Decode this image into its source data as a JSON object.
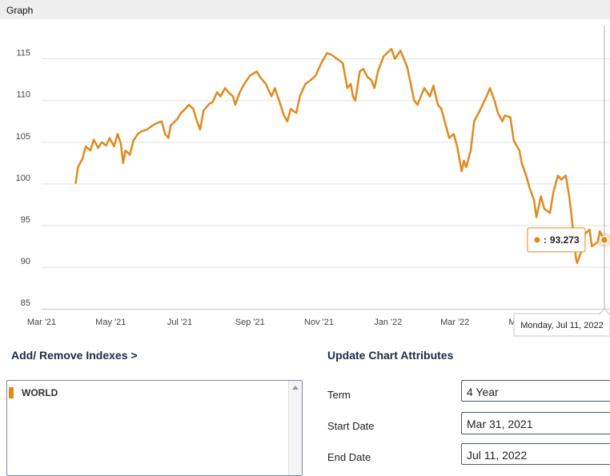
{
  "header": {
    "title": "Graph"
  },
  "chart_data": {
    "type": "line",
    "title": "",
    "xlabel": "",
    "ylabel": "",
    "ylim": [
      85,
      119
    ],
    "xlim": [
      "2021-03-01",
      "2022-07-16"
    ],
    "y_ticks": [
      85,
      90,
      95,
      100,
      105,
      110,
      115
    ],
    "x_ticks": [
      {
        "date": "2021-03-01",
        "label": "Mar '21"
      },
      {
        "date": "2021-05-01",
        "label": "May '21"
      },
      {
        "date": "2021-07-01",
        "label": "Jul '21"
      },
      {
        "date": "2021-09-01",
        "label": "Sep '21"
      },
      {
        "date": "2021-11-01",
        "label": "Nov '21"
      },
      {
        "date": "2022-01-01",
        "label": "Jan '22"
      },
      {
        "date": "2022-03-01",
        "label": "Mar '22"
      },
      {
        "date": "2022-05-01",
        "label": "May '22"
      }
    ],
    "grid": true,
    "series": [
      {
        "color": "#e08a1e",
        "points": [
          [
            "2021-03-31",
            100.0
          ],
          [
            "2021-04-02",
            102.0
          ],
          [
            "2021-04-06",
            103.0
          ],
          [
            "2021-04-09",
            104.5
          ],
          [
            "2021-04-13",
            104.0
          ],
          [
            "2021-04-16",
            105.3
          ],
          [
            "2021-04-20",
            104.3
          ],
          [
            "2021-04-23",
            105.0
          ],
          [
            "2021-04-27",
            104.6
          ],
          [
            "2021-04-30",
            105.5
          ],
          [
            "2021-05-04",
            104.5
          ],
          [
            "2021-05-07",
            106.0
          ],
          [
            "2021-05-10",
            104.8
          ],
          [
            "2021-05-12",
            102.5
          ],
          [
            "2021-05-14",
            104.0
          ],
          [
            "2021-05-18",
            103.5
          ],
          [
            "2021-05-21",
            105.2
          ],
          [
            "2021-05-25",
            106.0
          ],
          [
            "2021-05-28",
            106.3
          ],
          [
            "2021-06-02",
            106.5
          ],
          [
            "2021-06-07",
            107.0
          ],
          [
            "2021-06-11",
            107.3
          ],
          [
            "2021-06-15",
            107.5
          ],
          [
            "2021-06-18",
            106.0
          ],
          [
            "2021-06-21",
            105.5
          ],
          [
            "2021-06-23",
            107.0
          ],
          [
            "2021-06-29",
            107.8
          ],
          [
            "2021-07-02",
            108.5
          ],
          [
            "2021-07-06",
            109.0
          ],
          [
            "2021-07-09",
            109.5
          ],
          [
            "2021-07-13",
            109.0
          ],
          [
            "2021-07-16",
            107.6
          ],
          [
            "2021-07-19",
            106.5
          ],
          [
            "2021-07-22",
            108.8
          ],
          [
            "2021-07-27",
            109.6
          ],
          [
            "2021-07-30",
            109.8
          ],
          [
            "2021-08-03",
            111.0
          ],
          [
            "2021-08-06",
            110.5
          ],
          [
            "2021-08-10",
            111.5
          ],
          [
            "2021-08-13",
            111.0
          ],
          [
            "2021-08-17",
            110.5
          ],
          [
            "2021-08-19",
            109.5
          ],
          [
            "2021-08-23",
            111.0
          ],
          [
            "2021-08-27",
            112.0
          ],
          [
            "2021-09-01",
            113.0
          ],
          [
            "2021-09-07",
            113.5
          ],
          [
            "2021-09-10",
            112.8
          ],
          [
            "2021-09-15",
            112.0
          ],
          [
            "2021-09-20",
            110.5
          ],
          [
            "2021-09-23",
            111.5
          ],
          [
            "2021-09-28",
            109.5
          ],
          [
            "2021-10-01",
            108.2
          ],
          [
            "2021-10-04",
            107.5
          ],
          [
            "2021-10-07",
            109.0
          ],
          [
            "2021-10-12",
            108.5
          ],
          [
            "2021-10-15",
            110.5
          ],
          [
            "2021-10-20",
            112.0
          ],
          [
            "2021-10-25",
            112.5
          ],
          [
            "2021-10-29",
            113.0
          ],
          [
            "2021-11-03",
            114.5
          ],
          [
            "2021-11-08",
            115.7
          ],
          [
            "2021-11-12",
            115.5
          ],
          [
            "2021-11-17",
            115.0
          ],
          [
            "2021-11-22",
            114.5
          ],
          [
            "2021-11-26",
            111.5
          ],
          [
            "2021-11-29",
            112.0
          ],
          [
            "2021-12-01",
            110.5
          ],
          [
            "2021-12-03",
            110.0
          ],
          [
            "2021-12-07",
            113.5
          ],
          [
            "2021-12-10",
            113.8
          ],
          [
            "2021-12-14",
            112.8
          ],
          [
            "2021-12-17",
            112.5
          ],
          [
            "2021-12-20",
            111.5
          ],
          [
            "2021-12-23",
            113.5
          ],
          [
            "2021-12-28",
            115.3
          ],
          [
            "2022-01-04",
            116.2
          ],
          [
            "2022-01-07",
            115.0
          ],
          [
            "2022-01-12",
            116.0
          ],
          [
            "2022-01-18",
            114.0
          ],
          [
            "2022-01-21",
            112.0
          ],
          [
            "2022-01-24",
            110.0
          ],
          [
            "2022-01-27",
            109.5
          ],
          [
            "2022-02-02",
            111.5
          ],
          [
            "2022-02-07",
            110.5
          ],
          [
            "2022-02-10",
            111.8
          ],
          [
            "2022-02-14",
            109.5
          ],
          [
            "2022-02-17",
            109.0
          ],
          [
            "2022-02-22",
            106.5
          ],
          [
            "2022-02-24",
            105.5
          ],
          [
            "2022-02-28",
            106.0
          ],
          [
            "2022-03-03",
            104.5
          ],
          [
            "2022-03-07",
            101.5
          ],
          [
            "2022-03-09",
            102.8
          ],
          [
            "2022-03-11",
            102.0
          ],
          [
            "2022-03-15",
            104.0
          ],
          [
            "2022-03-18",
            107.5
          ],
          [
            "2022-03-23",
            108.8
          ],
          [
            "2022-03-29",
            110.5
          ],
          [
            "2022-04-01",
            111.5
          ],
          [
            "2022-04-05",
            110.0
          ],
          [
            "2022-04-08",
            108.5
          ],
          [
            "2022-04-12",
            107.5
          ],
          [
            "2022-04-14",
            108.2
          ],
          [
            "2022-04-19",
            108.0
          ],
          [
            "2022-04-22",
            105.2
          ],
          [
            "2022-04-27",
            104.0
          ],
          [
            "2022-04-29",
            102.5
          ],
          [
            "2022-05-03",
            101.0
          ],
          [
            "2022-05-06",
            99.5
          ],
          [
            "2022-05-10",
            98.0
          ],
          [
            "2022-05-12",
            96.0
          ],
          [
            "2022-05-16",
            98.5
          ],
          [
            "2022-05-19",
            97.0
          ],
          [
            "2022-05-24",
            96.5
          ],
          [
            "2022-05-27",
            99.0
          ],
          [
            "2022-05-31",
            101.0
          ],
          [
            "2022-06-03",
            100.5
          ],
          [
            "2022-06-07",
            101.0
          ],
          [
            "2022-06-10",
            98.5
          ],
          [
            "2022-06-13",
            95.0
          ],
          [
            "2022-06-16",
            91.0
          ],
          [
            "2022-06-17",
            90.5
          ],
          [
            "2022-06-21",
            92.0
          ],
          [
            "2022-06-24",
            94.0
          ],
          [
            "2022-06-28",
            94.5
          ],
          [
            "2022-06-30",
            92.5
          ],
          [
            "2022-07-05",
            93.0
          ],
          [
            "2022-07-07",
            94.3
          ],
          [
            "2022-07-11",
            93.273
          ]
        ]
      }
    ],
    "hover": {
      "date": "2022-07-11",
      "value_text": "93.273",
      "date_label": "Monday, Jul 11, 2022"
    }
  },
  "indexes": {
    "heading": "Add/ Remove Indexes >",
    "items": [
      {
        "name": "WORLD",
        "color": "#e08a1e"
      }
    ]
  },
  "attributes": {
    "heading": "Update Chart Attributes",
    "term": {
      "label": "Term",
      "value": "4 Year"
    },
    "start_date": {
      "label": "Start Date",
      "value": "Mar 31, 2021"
    },
    "end_date": {
      "label": "End Date",
      "value": "Jul 11, 2022"
    }
  }
}
